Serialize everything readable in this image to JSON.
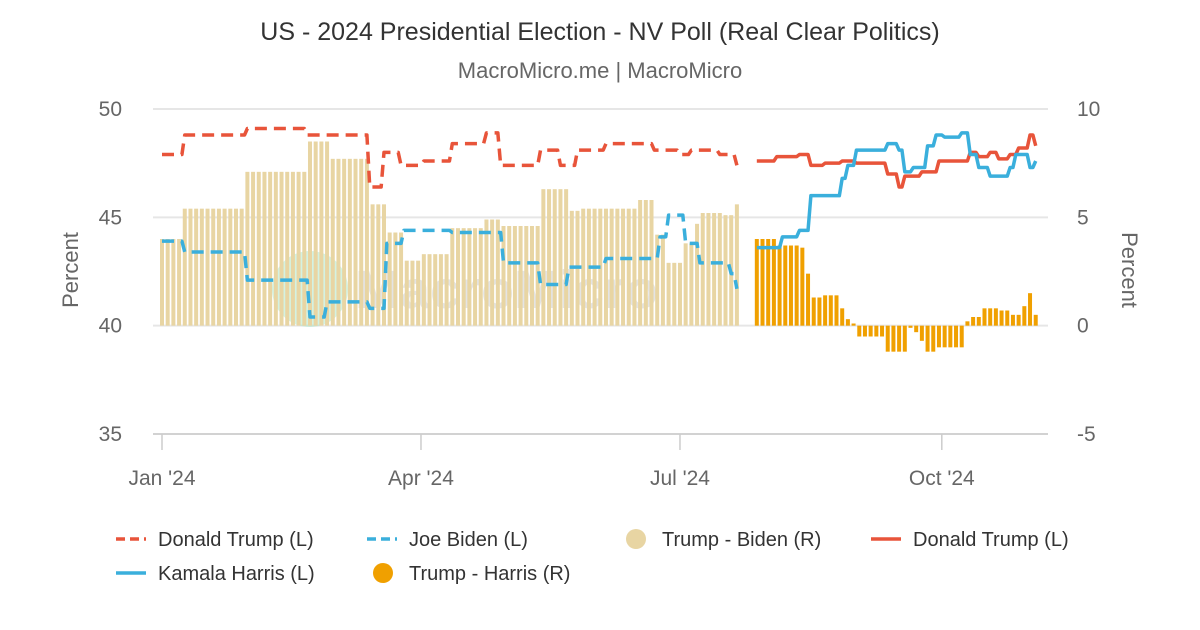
{
  "chart_data": {
    "type": "line+bar",
    "title": "US - 2024 Presidential Election - NV Poll (Real Clear Politics)",
    "subtitle": "MacroMicro.me | MacroMicro",
    "watermark": "MacroMicro",
    "xlabel": "",
    "ylabel_left": "Percent",
    "ylabel_right": "Percent",
    "ylim_left": [
      35,
      50
    ],
    "ylim_right": [
      -5,
      10
    ],
    "xlim": [
      "2024-01-01",
      "2024-11-05"
    ],
    "yticks_left": [
      "50",
      "45",
      "40",
      "35"
    ],
    "yticks_right": [
      "10",
      "5",
      "0",
      "-5"
    ],
    "xticks": [
      {
        "date": "2024-01-01",
        "label": "Jan '24"
      },
      {
        "date": "2024-04-01",
        "label": "Apr '24"
      },
      {
        "date": "2024-07-01",
        "label": "Jul '24"
      },
      {
        "date": "2024-10-01",
        "label": "Oct '24"
      }
    ],
    "grid": true,
    "legend_position": "bottom",
    "series": [
      {
        "name": "Donald Trump (L)",
        "kind": "line",
        "style": "dashed",
        "axis": "left",
        "color": "#e8543a",
        "end": "2024-07-21",
        "steps": [
          [
            "2024-01-01",
            47.9
          ],
          [
            "2024-01-09",
            48.8
          ],
          [
            "2024-01-31",
            49.1
          ],
          [
            "2024-02-21",
            48.8
          ],
          [
            "2024-03-14",
            46.4
          ],
          [
            "2024-03-19",
            48.0
          ],
          [
            "2024-03-25",
            47.4
          ],
          [
            "2024-04-02",
            47.6
          ],
          [
            "2024-04-12",
            48.4
          ],
          [
            "2024-04-24",
            48.9
          ],
          [
            "2024-04-29",
            47.4
          ],
          [
            "2024-05-13",
            48.1
          ],
          [
            "2024-05-20",
            47.4
          ],
          [
            "2024-05-26",
            48.1
          ],
          [
            "2024-06-05",
            48.4
          ],
          [
            "2024-06-22",
            48.1
          ],
          [
            "2024-07-01",
            47.9
          ],
          [
            "2024-07-05",
            48.1
          ],
          [
            "2024-07-15",
            47.9
          ],
          [
            "2024-07-21",
            47.4
          ]
        ]
      },
      {
        "name": "Joe Biden (L)",
        "kind": "line",
        "style": "dashed",
        "axis": "left",
        "color": "#3aafdc",
        "end": "2024-07-21",
        "steps": [
          [
            "2024-01-01",
            43.9
          ],
          [
            "2024-01-09",
            43.4
          ],
          [
            "2024-01-31",
            42.1
          ],
          [
            "2024-02-22",
            40.4
          ],
          [
            "2024-02-28",
            41.1
          ],
          [
            "2024-03-14",
            40.8
          ],
          [
            "2024-03-20",
            43.8
          ],
          [
            "2024-03-26",
            44.4
          ],
          [
            "2024-04-12",
            44.3
          ],
          [
            "2024-04-30",
            42.9
          ],
          [
            "2024-05-13",
            41.9
          ],
          [
            "2024-05-23",
            42.7
          ],
          [
            "2024-06-05",
            43.1
          ],
          [
            "2024-06-24",
            44.1
          ],
          [
            "2024-06-27",
            45.1
          ],
          [
            "2024-07-03",
            43.8
          ],
          [
            "2024-07-08",
            42.9
          ],
          [
            "2024-07-19",
            42.4
          ],
          [
            "2024-07-21",
            41.7
          ]
        ]
      },
      {
        "name": "Trump - Biden (R)",
        "kind": "bar",
        "axis": "right",
        "color": "#e8d5a3",
        "end": "2024-07-21",
        "steps": [
          [
            "2024-01-01",
            4.0
          ],
          [
            "2024-01-09",
            5.4
          ],
          [
            "2024-01-31",
            7.1
          ],
          [
            "2024-02-22",
            8.5
          ],
          [
            "2024-02-29",
            7.7
          ],
          [
            "2024-03-14",
            5.6
          ],
          [
            "2024-03-20",
            4.3
          ],
          [
            "2024-03-26",
            3.0
          ],
          [
            "2024-04-02",
            3.3
          ],
          [
            "2024-04-12",
            4.5
          ],
          [
            "2024-04-24",
            4.9
          ],
          [
            "2024-04-30",
            4.6
          ],
          [
            "2024-05-13",
            6.3
          ],
          [
            "2024-05-23",
            5.3
          ],
          [
            "2024-05-27",
            5.4
          ],
          [
            "2024-06-17",
            5.8
          ],
          [
            "2024-06-22",
            4.2
          ],
          [
            "2024-06-27",
            2.9
          ],
          [
            "2024-07-03",
            3.8
          ],
          [
            "2024-07-06",
            4.7
          ],
          [
            "2024-07-08",
            5.2
          ],
          [
            "2024-07-17",
            5.1
          ],
          [
            "2024-07-21",
            5.6
          ]
        ]
      },
      {
        "name": "Donald Trump (L)",
        "kind": "line",
        "style": "solid",
        "axis": "left",
        "color": "#e8543a",
        "end": "2024-11-03",
        "steps": [
          [
            "2024-07-28",
            47.6
          ],
          [
            "2024-08-04",
            47.8
          ],
          [
            "2024-08-12",
            47.9
          ],
          [
            "2024-08-16",
            47.4
          ],
          [
            "2024-08-21",
            47.5
          ],
          [
            "2024-08-27",
            47.6
          ],
          [
            "2024-09-01",
            47.5
          ],
          [
            "2024-09-12",
            47.0
          ],
          [
            "2024-09-16",
            46.4
          ],
          [
            "2024-09-18",
            46.9
          ],
          [
            "2024-09-24",
            47.1
          ],
          [
            "2024-09-30",
            47.6
          ],
          [
            "2024-10-11",
            48.0
          ],
          [
            "2024-10-14",
            47.8
          ],
          [
            "2024-10-18",
            48.0
          ],
          [
            "2024-10-21",
            47.7
          ],
          [
            "2024-10-25",
            47.9
          ],
          [
            "2024-10-28",
            48.2
          ],
          [
            "2024-11-01",
            48.8
          ],
          [
            "2024-11-03",
            48.3
          ]
        ]
      },
      {
        "name": "Kamala Harris (L)",
        "kind": "line",
        "style": "solid",
        "axis": "left",
        "color": "#3aafdc",
        "end": "2024-11-03",
        "steps": [
          [
            "2024-07-28",
            43.6
          ],
          [
            "2024-08-06",
            44.1
          ],
          [
            "2024-08-12",
            44.4
          ],
          [
            "2024-08-16",
            46.0
          ],
          [
            "2024-08-27",
            46.8
          ],
          [
            "2024-08-29",
            47.4
          ],
          [
            "2024-09-01",
            48.1
          ],
          [
            "2024-09-12",
            48.4
          ],
          [
            "2024-09-16",
            48.1
          ],
          [
            "2024-09-18",
            47.1
          ],
          [
            "2024-09-21",
            47.3
          ],
          [
            "2024-09-26",
            48.3
          ],
          [
            "2024-09-29",
            48.8
          ],
          [
            "2024-10-02",
            48.7
          ],
          [
            "2024-10-08",
            48.9
          ],
          [
            "2024-10-11",
            47.9
          ],
          [
            "2024-10-14",
            47.3
          ],
          [
            "2024-10-18",
            46.9
          ],
          [
            "2024-10-25",
            47.3
          ],
          [
            "2024-10-27",
            47.9
          ],
          [
            "2024-11-01",
            47.3
          ],
          [
            "2024-11-03",
            47.6
          ]
        ]
      },
      {
        "name": "Trump - Harris (R)",
        "kind": "bar",
        "axis": "right",
        "color": "#f0a000",
        "end": "2024-11-03",
        "steps": [
          [
            "2024-07-28",
            4.0
          ],
          [
            "2024-08-05",
            3.7
          ],
          [
            "2024-08-13",
            3.6
          ],
          [
            "2024-08-14",
            3.0
          ],
          [
            "2024-08-15",
            2.4
          ],
          [
            "2024-08-16",
            1.8
          ],
          [
            "2024-08-17",
            1.3
          ],
          [
            "2024-08-21",
            1.4
          ],
          [
            "2024-08-27",
            0.8
          ],
          [
            "2024-08-29",
            0.3
          ],
          [
            "2024-08-30",
            0.1
          ],
          [
            "2024-09-01",
            -0.5
          ],
          [
            "2024-09-11",
            -0.9
          ],
          [
            "2024-09-12",
            -1.2
          ],
          [
            "2024-09-19",
            -0.1
          ],
          [
            "2024-09-22",
            -0.3
          ],
          [
            "2024-09-24",
            -0.7
          ],
          [
            "2024-09-26",
            -1.2
          ],
          [
            "2024-09-30",
            -1.0
          ],
          [
            "2024-10-10",
            0.2
          ],
          [
            "2024-10-12",
            0.4
          ],
          [
            "2024-10-15",
            0.8
          ],
          [
            "2024-10-21",
            0.7
          ],
          [
            "2024-10-25",
            0.5
          ],
          [
            "2024-10-27",
            0.3
          ],
          [
            "2024-10-28",
            0.5
          ],
          [
            "2024-10-30",
            0.9
          ],
          [
            "2024-11-01",
            1.5
          ],
          [
            "2024-11-02",
            0.9
          ],
          [
            "2024-11-03",
            0.5
          ]
        ]
      }
    ]
  }
}
